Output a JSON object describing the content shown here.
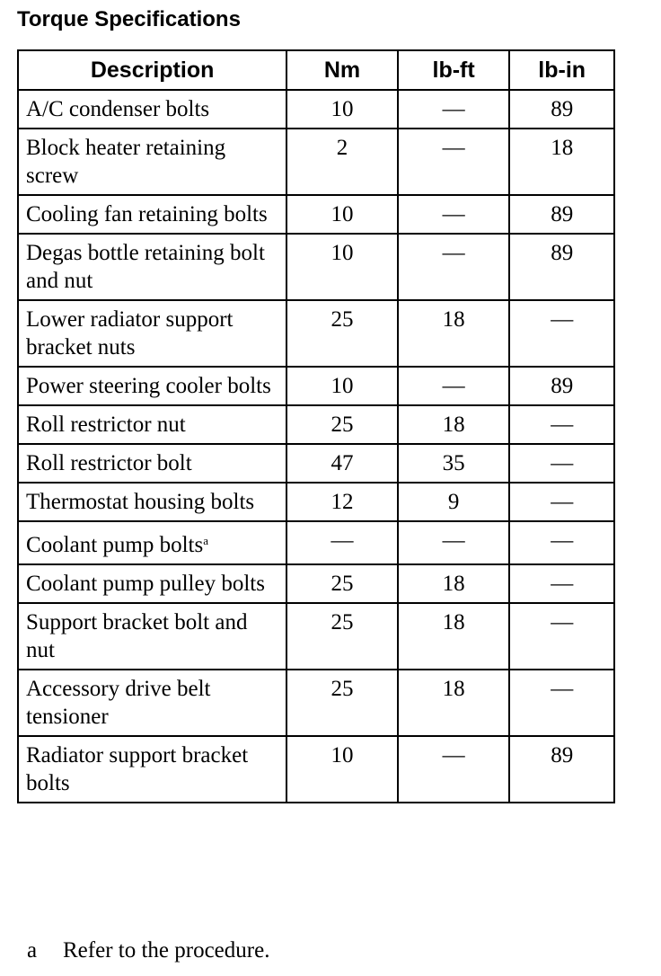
{
  "title": "Torque Specifications",
  "table": {
    "headers": [
      "Description",
      "Nm",
      "lb-ft",
      "lb-in"
    ],
    "rows": [
      {
        "description": "A/C condenser bolts",
        "nm": "10",
        "lbft": "—",
        "lbin": "89"
      },
      {
        "description": "Block heater retaining screw",
        "nm": "2",
        "lbft": "—",
        "lbin": "18"
      },
      {
        "description": "Cooling fan retaining bolts",
        "nm": "10",
        "lbft": "—",
        "lbin": "89"
      },
      {
        "description": "Degas bottle retaining bolt and nut",
        "nm": "10",
        "lbft": "—",
        "lbin": "89"
      },
      {
        "description": "Lower radiator support bracket nuts",
        "nm": "25",
        "lbft": "18",
        "lbin": "—"
      },
      {
        "description": "Power steering cooler bolts",
        "nm": "10",
        "lbft": "—",
        "lbin": "89"
      },
      {
        "description": "Roll restrictor nut",
        "nm": "25",
        "lbft": "18",
        "lbin": "—"
      },
      {
        "description": "Roll restrictor bolt",
        "nm": "47",
        "lbft": "35",
        "lbin": "—"
      },
      {
        "description": "Thermostat housing bolts",
        "nm": "12",
        "lbft": "9",
        "lbin": "—"
      },
      {
        "description": "Coolant pump bolts",
        "note": "a",
        "nm": "—",
        "lbft": "—",
        "lbin": "—"
      },
      {
        "description": "Coolant pump pulley bolts",
        "nm": "25",
        "lbft": "18",
        "lbin": "—"
      },
      {
        "description": "Support bracket bolt and nut",
        "nm": "25",
        "lbft": "18",
        "lbin": "—"
      },
      {
        "description": "Accessory drive belt tensioner",
        "nm": "25",
        "lbft": "18",
        "lbin": "—"
      },
      {
        "description": "Radiator support bracket bolts",
        "nm": "10",
        "lbft": "—",
        "lbin": "89"
      }
    ]
  },
  "footnote": {
    "label": "a",
    "text": "Refer to the procedure."
  }
}
